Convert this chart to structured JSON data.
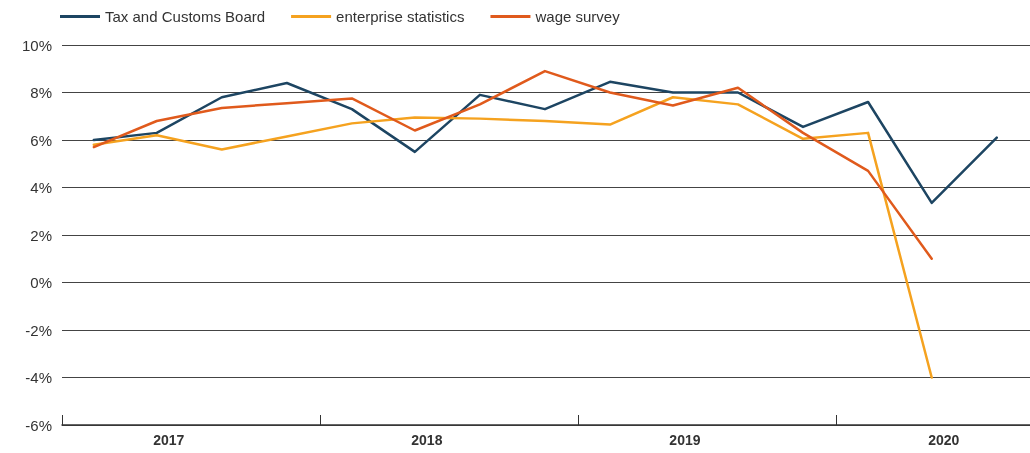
{
  "chart_data": {
    "type": "line",
    "x": [
      "2017-02-15",
      "2017-05-15",
      "2017-08-15",
      "2017-11-15",
      "2018-02-15",
      "2018-05-15",
      "2018-08-15",
      "2018-11-15",
      "2019-02-15",
      "2019-05-15",
      "2019-08-15",
      "2019-11-15",
      "2020-02-15",
      "2020-05-15",
      "2020-08-15"
    ],
    "series": [
      {
        "name": "Tax and Customs Board",
        "color": "#1d4562",
        "values": [
          6.0,
          6.3,
          7.8,
          8.4,
          7.3,
          5.5,
          7.9,
          7.3,
          8.45,
          8.0,
          8.0,
          6.55,
          7.6,
          3.35,
          6.1
        ]
      },
      {
        "name": "enterprise statistics",
        "color": "#f5a21f",
        "values": [
          5.8,
          6.2,
          5.6,
          6.15,
          6.7,
          6.95,
          6.9,
          6.8,
          6.65,
          7.8,
          7.5,
          6.05,
          6.3,
          -4.0,
          null
        ]
      },
      {
        "name": "wage survey",
        "color": "#e05a1c",
        "values": [
          5.7,
          6.8,
          7.35,
          7.55,
          7.75,
          6.4,
          7.5,
          8.9,
          8.0,
          7.45,
          8.2,
          6.3,
          4.7,
          1.0,
          null
        ]
      }
    ],
    "xlim": [
      "2017-01-01",
      "2020-10-01"
    ],
    "xticks": [
      {
        "value": "2017-01-01",
        "label": null
      },
      {
        "value": "2017-06-01",
        "label": "2017"
      },
      {
        "value": "2018-01-01",
        "label": null
      },
      {
        "value": "2018-06-01",
        "label": "2018"
      },
      {
        "value": "2019-01-01",
        "label": null
      },
      {
        "value": "2019-06-01",
        "label": "2019"
      },
      {
        "value": "2020-01-01",
        "label": null
      },
      {
        "value": "2020-06-01",
        "label": "2020"
      }
    ],
    "ylim": [
      -6,
      10
    ],
    "yticks": [
      {
        "value": -6,
        "label": "-6%"
      },
      {
        "value": -4,
        "label": "-4%"
      },
      {
        "value": -2,
        "label": "-2%"
      },
      {
        "value": 0,
        "label": "0%"
      },
      {
        "value": 2,
        "label": "2%"
      },
      {
        "value": 4,
        "label": "4%"
      },
      {
        "value": 6,
        "label": "6%"
      },
      {
        "value": 8,
        "label": "8%"
      },
      {
        "value": 10,
        "label": "10%"
      }
    ],
    "grid": "y",
    "legend": "top left",
    "marker": "none",
    "line_style": "solid"
  }
}
